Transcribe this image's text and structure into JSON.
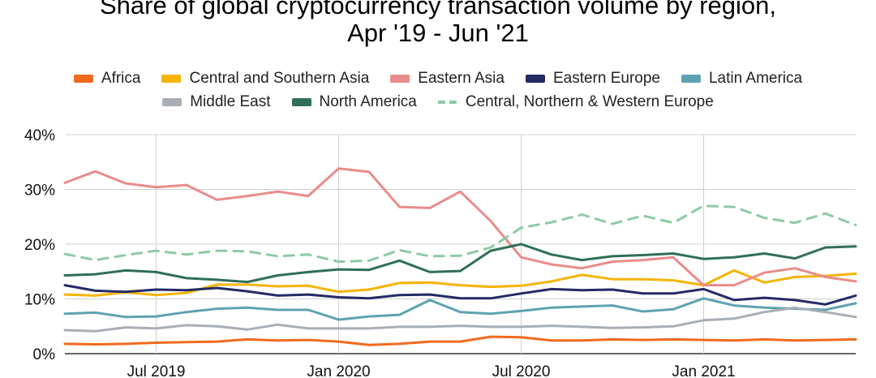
{
  "title_line1": "Share of global cryptocurrency transaction volume by region,",
  "title_line2": "Apr '19 - Jun '21",
  "chart_data": {
    "type": "line",
    "title": "Share of global cryptocurrency transaction volume by region, Apr '19 - Jun '21",
    "xlabel": "",
    "ylabel": "",
    "x": [
      "2019-04",
      "2019-05",
      "2019-06",
      "2019-07",
      "2019-08",
      "2019-09",
      "2019-10",
      "2019-11",
      "2019-12",
      "2020-01",
      "2020-02",
      "2020-03",
      "2020-04",
      "2020-05",
      "2020-06",
      "2020-07",
      "2020-08",
      "2020-09",
      "2020-10",
      "2020-11",
      "2020-12",
      "2021-01",
      "2021-02",
      "2021-03",
      "2021-04",
      "2021-05",
      "2021-06"
    ],
    "x_ticks": [
      "Jul 2019",
      "Jan 2020",
      "Jul 2020",
      "Jan 2021"
    ],
    "y_ticks": [
      "0%",
      "10%",
      "20%",
      "30%",
      "40%"
    ],
    "ylim": [
      0,
      40
    ],
    "y_unit": "%",
    "grid": true,
    "legend_position": "top",
    "series": [
      {
        "name": "Africa",
        "color": "#f06a1d",
        "dash": false,
        "values": [
          1.8,
          1.7,
          1.8,
          2.0,
          2.1,
          2.2,
          2.6,
          2.4,
          2.5,
          2.2,
          1.6,
          1.8,
          2.2,
          2.2,
          3.1,
          3.0,
          2.4,
          2.4,
          2.6,
          2.5,
          2.6,
          2.5,
          2.4,
          2.6,
          2.4,
          2.5,
          2.6
        ]
      },
      {
        "name": "Central and Southern Asia",
        "color": "#f4b400",
        "dash": false,
        "values": [
          10.8,
          10.6,
          11.2,
          10.7,
          11.1,
          12.6,
          12.6,
          12.3,
          12.4,
          11.3,
          11.7,
          12.9,
          13.0,
          12.5,
          12.2,
          12.4,
          13.2,
          14.4,
          13.6,
          13.6,
          13.4,
          12.5,
          15.2,
          13.0,
          14.0,
          14.2,
          14.6
        ]
      },
      {
        "name": "Eastern Asia",
        "color": "#ea8b8b",
        "dash": false,
        "values": [
          31.2,
          33.3,
          31.1,
          30.4,
          30.8,
          28.1,
          28.8,
          29.6,
          28.8,
          33.8,
          33.2,
          26.8,
          26.6,
          29.6,
          24.2,
          17.6,
          16.3,
          15.6,
          16.8,
          17.1,
          17.6,
          12.5,
          12.5,
          14.8,
          15.6,
          14.0,
          13.2
        ]
      },
      {
        "name": "Eastern Europe",
        "color": "#242a66",
        "dash": false,
        "values": [
          12.5,
          11.5,
          11.3,
          11.7,
          11.6,
          12.0,
          11.4,
          10.6,
          10.8,
          10.3,
          10.1,
          10.7,
          10.8,
          10.1,
          10.1,
          11.0,
          11.8,
          11.6,
          11.7,
          11.0,
          11.0,
          11.8,
          9.8,
          10.2,
          9.8,
          9.0,
          10.6
        ]
      },
      {
        "name": "Latin America",
        "color": "#5ea2b1",
        "dash": false,
        "values": [
          7.3,
          7.5,
          6.7,
          6.8,
          7.6,
          8.2,
          8.4,
          8.0,
          8.0,
          6.2,
          6.8,
          7.1,
          9.8,
          7.6,
          7.3,
          7.8,
          8.4,
          8.6,
          8.8,
          7.7,
          8.1,
          10.1,
          8.8,
          8.4,
          8.2,
          8.0,
          9.2
        ]
      },
      {
        "name": "Middle East",
        "color": "#a8aeb5",
        "dash": false,
        "values": [
          4.3,
          4.1,
          4.8,
          4.6,
          5.2,
          5.0,
          4.4,
          5.3,
          4.6,
          4.6,
          4.6,
          4.9,
          4.9,
          5.1,
          4.9,
          4.9,
          5.1,
          4.9,
          4.7,
          4.8,
          5.0,
          6.1,
          6.4,
          7.6,
          8.4,
          7.6,
          6.7
        ]
      },
      {
        "name": "North America",
        "color": "#2f6f57",
        "dash": false,
        "values": [
          14.3,
          14.5,
          15.2,
          14.9,
          13.8,
          13.5,
          13.1,
          14.3,
          14.9,
          15.4,
          15.3,
          17.0,
          14.9,
          15.1,
          18.8,
          20.0,
          18.1,
          17.1,
          17.8,
          18.0,
          18.3,
          17.3,
          17.6,
          18.3,
          17.4,
          19.4,
          19.6
        ]
      },
      {
        "name": "Central, Northern & Western Europe",
        "color": "#8ccaa4",
        "dash": true,
        "values": [
          18.2,
          17.1,
          18.0,
          18.8,
          18.1,
          18.8,
          18.7,
          17.8,
          18.1,
          16.8,
          17.0,
          18.9,
          17.8,
          17.9,
          19.4,
          23.0,
          24.0,
          25.4,
          23.7,
          25.2,
          23.9,
          27.0,
          26.8,
          24.8,
          23.9,
          25.6,
          23.5
        ]
      }
    ]
  }
}
